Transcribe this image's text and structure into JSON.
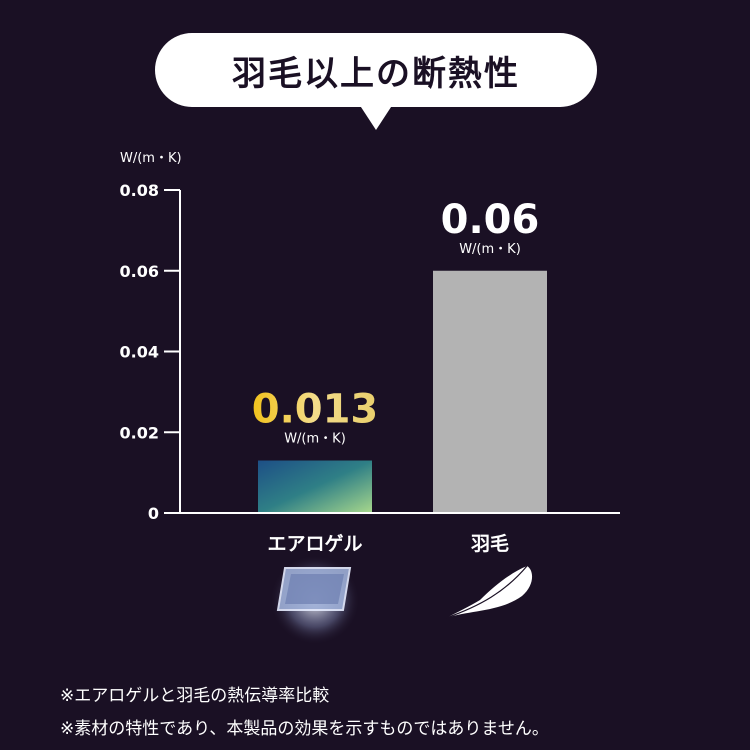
{
  "title": "羽毛以上の断熱性",
  "chart_data": {
    "type": "bar",
    "ylabel": "W/(m・K)",
    "ylim": [
      0,
      0.08
    ],
    "yticks": [
      "0",
      "0.02",
      "0.04",
      "0.06",
      "0.08"
    ],
    "categories": [
      "エアロゲル",
      "羽毛"
    ],
    "values": [
      0.013,
      0.06
    ],
    "data_labels": [
      "0.013",
      "0.06"
    ],
    "data_label_unit": "W/(m・K)",
    "colors": [
      "#2a6a8a",
      "#b3b3b3"
    ],
    "grid": false
  },
  "icons": [
    "aerogel-panel-icon",
    "feather-icon"
  ],
  "footnotes": [
    "※エアロゲルと羽毛の熱伝導率比較",
    "※素材の特性であり、本製品の効果を示すものではありません。"
  ]
}
